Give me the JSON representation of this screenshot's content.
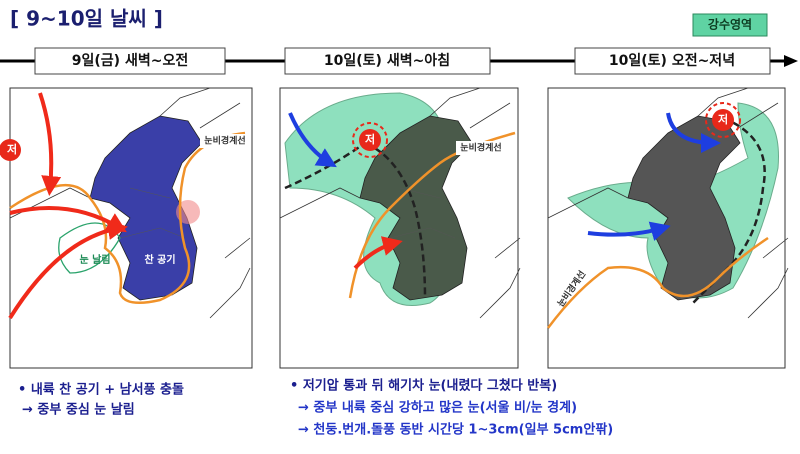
{
  "header": {
    "title": "[ 9~10일 날씨 ]",
    "legend": "강수영역"
  },
  "panels": [
    {
      "time": "9일(금) 새벽~오전",
      "labels": {
        "low": "저",
        "boundary": "눈비경계선",
        "snow": "눈 날림",
        "cold": "찬 공기"
      }
    },
    {
      "time": "10일(토) 새벽~아침",
      "labels": {
        "low": "저",
        "boundary": "눈비경계선"
      }
    },
    {
      "time": "10일(토) 오전~저녁",
      "labels": {
        "low": "저",
        "boundary": "눈비경계선"
      }
    }
  ],
  "notes": [
    {
      "lines": [
        "• 내륙 찬 공기 + 남서풍 충돌",
        "→ 중부 중심 눈 날림"
      ]
    },
    {
      "lines": [
        "• 저기압 통과 뒤 해기차 눈(내렸다 그쳤다 반복)",
        "→ 중부 내륙 중심 강하고 많은 눈(서울 비/눈 경계)",
        "→ 천둥.번개.돌풍 동반 시간당 1~3cm(일부 5cm안팎)"
      ]
    }
  ]
}
